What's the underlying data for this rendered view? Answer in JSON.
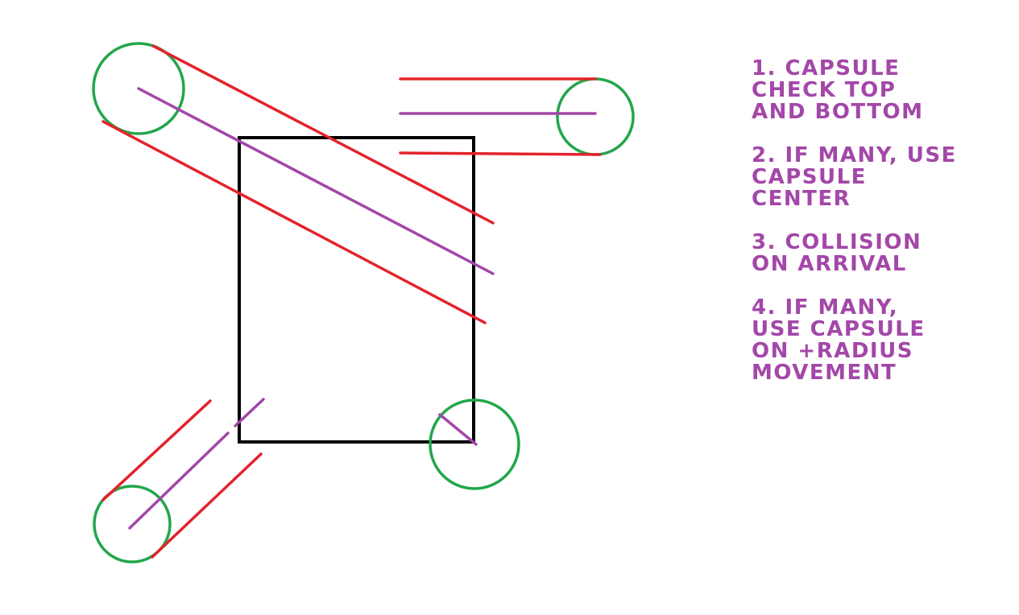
{
  "colors": {
    "background": "#ffffff",
    "box": "#000000",
    "circle": "#22a64a",
    "edge_line": "#e3232b",
    "center_line": "#a347a8",
    "text": "#a347a8"
  },
  "notes": [
    {
      "text": "1. Capsule\ncheck top\nand bottom"
    },
    {
      "text": "2. If many, use\ncapsule\ncenter"
    },
    {
      "text": "3. Collision\non arrival"
    },
    {
      "text": "4. If many,\nuse capsule\non +radius\nmovement"
    }
  ]
}
